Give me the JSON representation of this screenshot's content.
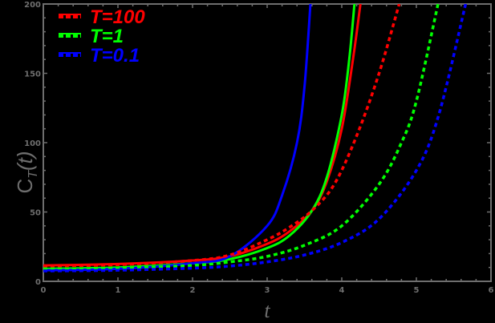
{
  "chart_data": {
    "type": "line",
    "title": "",
    "xlabel": "t",
    "ylabel": "C_T(t)",
    "xlim": [
      0,
      6
    ],
    "ylim": [
      0,
      200
    ],
    "xticks": [
      0,
      1,
      2,
      3,
      4,
      5,
      6
    ],
    "yticks": [
      0,
      50,
      100,
      150,
      200
    ],
    "grid": false,
    "legend_position": "top-left",
    "series": [
      {
        "name": "T=100",
        "style": "solid",
        "color": "#ff0000",
        "x": [
          0,
          1,
          2,
          2.5,
          3,
          3.3,
          3.6,
          3.8,
          4.0,
          4.15,
          4.25
        ],
        "y": [
          11.5,
          12.5,
          15,
          18,
          27,
          36,
          51,
          72,
          110,
          160,
          200
        ]
      },
      {
        "name": "T=1",
        "style": "solid",
        "color": "#00ff00",
        "x": [
          0,
          1,
          2,
          2.5,
          3,
          3.3,
          3.6,
          3.8,
          4.0,
          4.1,
          4.17
        ],
        "y": [
          9,
          10,
          13,
          16,
          24,
          33,
          51,
          75,
          120,
          160,
          200
        ]
      },
      {
        "name": "T=0.1",
        "style": "solid",
        "color": "#0000ff",
        "x": [
          0,
          1,
          2,
          2.5,
          3,
          3.2,
          3.4,
          3.5,
          3.58
        ],
        "y": [
          8,
          9,
          13,
          18,
          40,
          62,
          100,
          140,
          200
        ]
      },
      {
        "name": "T=100",
        "style": "dashed",
        "color": "#ff0000",
        "x": [
          0,
          1,
          2,
          2.5,
          3,
          3.3,
          3.6,
          3.9,
          4.2,
          4.5,
          4.77
        ],
        "y": [
          11,
          12,
          15,
          19,
          30,
          39,
          51,
          70,
          105,
          150,
          200
        ]
      },
      {
        "name": "T=1",
        "style": "dashed",
        "color": "#00ff00",
        "x": [
          0,
          1,
          2,
          2.5,
          3,
          3.5,
          4,
          4.5,
          4.8,
          5.0,
          5.29
        ],
        "y": [
          9,
          9.5,
          11.5,
          14,
          18,
          26,
          40,
          70,
          100,
          130,
          200
        ]
      },
      {
        "name": "T=0.1",
        "style": "dashed",
        "color": "#0000ff",
        "x": [
          0,
          1,
          2,
          2.5,
          3,
          3.5,
          4,
          4.5,
          5.0,
          5.3,
          5.66
        ],
        "y": [
          7.5,
          8,
          9.5,
          11,
          14,
          19,
          28,
          45,
          80,
          120,
          200
        ]
      }
    ],
    "legend": [
      {
        "label": "T=100",
        "color": "#ff0000"
      },
      {
        "label": "T=1",
        "color": "#00ff00"
      },
      {
        "label": "T=0.1",
        "color": "#0000ff"
      }
    ]
  },
  "axis": {
    "x_title": "t",
    "y_title_main": "C",
    "y_title_sub": "T",
    "y_title_arg": "(t)"
  },
  "colors": {
    "axis": "#6e6e6e",
    "background": "#000000"
  }
}
